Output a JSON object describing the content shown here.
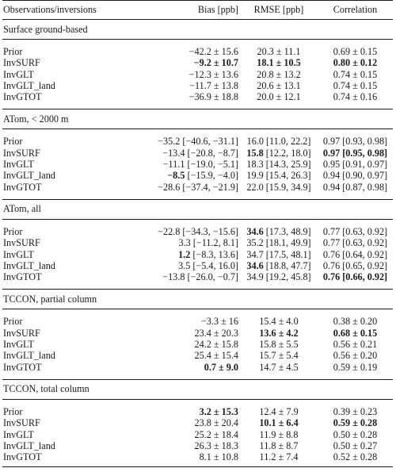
{
  "header": {
    "col1": "Observations/inversions",
    "col2": "Bias [ppb]",
    "col3": "RMSE [ppb]",
    "col4": "Correlation"
  },
  "sections": [
    {
      "title": "Surface ground-based",
      "rows": [
        {
          "name": "Prior",
          "bias": "−42.2 ± 15.6",
          "rmse": "20.3 ± 11.1",
          "corr": "0.69 ± 0.15"
        },
        {
          "name": "InvSURF",
          "bias": "−9.2 ± 10.7",
          "rmse": "18.1 ± 10.5",
          "corr": "0.80 ± 0.12"
        },
        {
          "name": "InvGLT",
          "bias": "−12.3 ± 13.6",
          "rmse": "20.8 ± 13.2",
          "corr": "0.74 ± 0.15"
        },
        {
          "name": "InvGLT_land",
          "bias": "−11.7 ± 13.8",
          "rmse": "20.6 ± 13.1",
          "corr": "0.74 ± 0.15"
        },
        {
          "name": "InvGTOT",
          "bias": "−36.9 ± 18.8",
          "rmse": "20.0 ± 12.1",
          "corr": "0.74 ± 0.16"
        }
      ]
    },
    {
      "title": "ATom, < 2000 m",
      "rows": [
        {
          "name": "Prior",
          "bias": "−35.2 [−40.6, −31.1]",
          "rmse": "16.0 [11.0, 22.2]",
          "corr": "0.97 [0.93, 0.98]"
        },
        {
          "name": "InvSURF",
          "bias": "−13.4 [−20.8, −8.7]",
          "rmse_pre": "15.8",
          "rmse_post": " [12.2, 18.0]",
          "corr": "0.97 [0.95, 0.98]"
        },
        {
          "name": "InvGLT",
          "bias": "−11.1 [−19.0, −5.1]",
          "rmse": "18.3 [14.3, 25.9]",
          "corr": "0.95 [0.91, 0.97]"
        },
        {
          "name": "InvGLT_land",
          "bias_pre": "−8.5",
          "bias_post": " [−15.9, −4.0]",
          "rmse": "19.9 [15.4, 26.3]",
          "corr": "0.94 [0.90, 0.97]"
        },
        {
          "name": "InvGTOT",
          "bias": "−28.6 [−37.4, −21.9]",
          "rmse": "22.0 [15.9, 34.9]",
          "corr": "0.94 [0.87, 0.98]"
        }
      ]
    },
    {
      "title": "ATom, all",
      "rows": [
        {
          "name": "Prior",
          "bias": "−22.8 [−34.3, −15.6]",
          "rmse_pre": "34.6",
          "rmse_post": " [17.3, 48.9]",
          "corr": "0.77 [0.63, 0.92]"
        },
        {
          "name": "InvSURF",
          "bias": "3.3 [−11.2, 8.1]",
          "rmse": "35.2 [18.1, 49.9]",
          "corr": "0.77 [0.63, 0.92]"
        },
        {
          "name": "InvGLT",
          "bias_pre": "1.2",
          "bias_post": " [−8.3, 13.6]",
          "rmse": "34.7 [17.5, 48.1]",
          "corr": "0.76 [0.64, 0.92]"
        },
        {
          "name": "InvGLT_land",
          "bias": "3.5 [−5.4, 16.0]",
          "rmse_pre": "34.6",
          "rmse_post": " [18.8, 47.7]",
          "corr": "0.76 [0.65, 0.92]"
        },
        {
          "name": "InvGTOT",
          "bias": "−13.8 [−26.0, −0.7]",
          "rmse": "34.9 [19.2, 45.8]",
          "corr": "0.76 [0.66, 0.92]"
        }
      ]
    },
    {
      "title": "TCCON, partial column",
      "rows": [
        {
          "name": "Prior",
          "bias": "−3.3 ± 16",
          "rmse": "15.4 ± 4.0",
          "corr": "0.38 ± 0.20"
        },
        {
          "name": "InvSURF",
          "bias": "23.4 ± 20.3",
          "rmse": "13.6 ± 4.2",
          "corr": "0.68 ± 0.15"
        },
        {
          "name": "InvGLT",
          "bias": "24.2 ± 15.8",
          "rmse": "15.8 ± 5.5",
          "corr": "0.56 ± 0.21"
        },
        {
          "name": "InvGLT_land",
          "bias": "25.4 ± 15.4",
          "rmse": "15.7 ± 5.4",
          "corr": "0.56 ± 0.20"
        },
        {
          "name": "InvGTOT",
          "bias": "0.7 ± 9.0",
          "rmse": "14.7 ± 4.5",
          "corr": "0.59 ± 0.19"
        }
      ]
    },
    {
      "title": "TCCON, total column",
      "rows": [
        {
          "name": "Prior",
          "bias": "3.2 ± 15.3",
          "rmse": "12.4 ± 7.9",
          "corr": "0.39 ± 0.23"
        },
        {
          "name": "InvSURF",
          "bias": "23.8 ± 20.4",
          "rmse": "10.1 ± 6.4",
          "corr": "0.59 ± 0.28"
        },
        {
          "name": "InvGLT",
          "bias": "25.2 ± 18.4",
          "rmse": "11.9 ± 8.8",
          "corr": "0.50 ± 0.28"
        },
        {
          "name": "InvGLT_land",
          "bias": "26.3 ± 18.3",
          "rmse": "11.8 ± 8.7",
          "corr": "0.50 ± 0.27"
        },
        {
          "name": "InvGTOT",
          "bias": "8.1 ± 10.8",
          "rmse": "11.2 ± 7.4",
          "corr": "0.52 ± 0.28"
        }
      ]
    }
  ]
}
